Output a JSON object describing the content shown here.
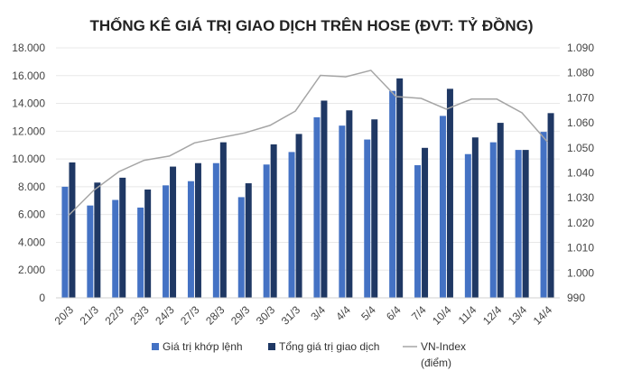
{
  "chart_data": {
    "type": "bar",
    "title": "THỐNG KÊ GIÁ TRỊ GIAO DỊCH TRÊN HOSE (ĐVT: TỶ ĐỒNG)",
    "categories": [
      "20/3",
      "21/3",
      "22/3",
      "23/3",
      "24/3",
      "27/3",
      "28/3",
      "29/3",
      "30/3",
      "31/3",
      "3/4",
      "4/4",
      "5/4",
      "6/4",
      "7/4",
      "10/4",
      "11/4",
      "12/4",
      "13/4",
      "14/4"
    ],
    "y_left": {
      "range": [
        0,
        18000
      ],
      "ticks": [
        "0",
        "2.000",
        "4.000",
        "6.000",
        "8.000",
        "10.000",
        "12.000",
        "14.000",
        "16.000",
        "18.000"
      ]
    },
    "y_right": {
      "range": [
        990,
        1090
      ],
      "ticks": [
        "990",
        "1.000",
        "1.010",
        "1.020",
        "1.030",
        "1.040",
        "1.050",
        "1.060",
        "1.070",
        "1.080",
        "1.090"
      ]
    },
    "grid": true,
    "legend_placement": "bottom",
    "series": [
      {
        "name": "Giá trị khớp lệnh",
        "type": "bar",
        "axis": "left",
        "color": "#4472C4",
        "values": [
          8000,
          6650,
          7050,
          6500,
          8100,
          8400,
          9700,
          7250,
          9600,
          10500,
          13000,
          12400,
          11400,
          14900,
          9550,
          13100,
          10350,
          11200,
          10650,
          11950
        ]
      },
      {
        "name": "Tổng giá trị giao dịch",
        "type": "bar",
        "axis": "left",
        "color": "#1F3864",
        "values": [
          9750,
          8300,
          8650,
          7800,
          9450,
          9700,
          11200,
          8250,
          11050,
          11800,
          14200,
          13500,
          12850,
          15800,
          10800,
          15050,
          11550,
          12600,
          10650,
          13300
        ]
      },
      {
        "name": "VN-Index",
        "name_line2": "(điểm)",
        "type": "line",
        "axis": "right",
        "color": "#A5A5A5",
        "values": [
          1023,
          1033,
          1040.5,
          1045,
          1046.7,
          1052,
          1054,
          1056,
          1059,
          1064.7,
          1079,
          1078.4,
          1081,
          1070.5,
          1069.8,
          1065.5,
          1069.5,
          1069.5,
          1064,
          1052.5
        ]
      }
    ]
  }
}
